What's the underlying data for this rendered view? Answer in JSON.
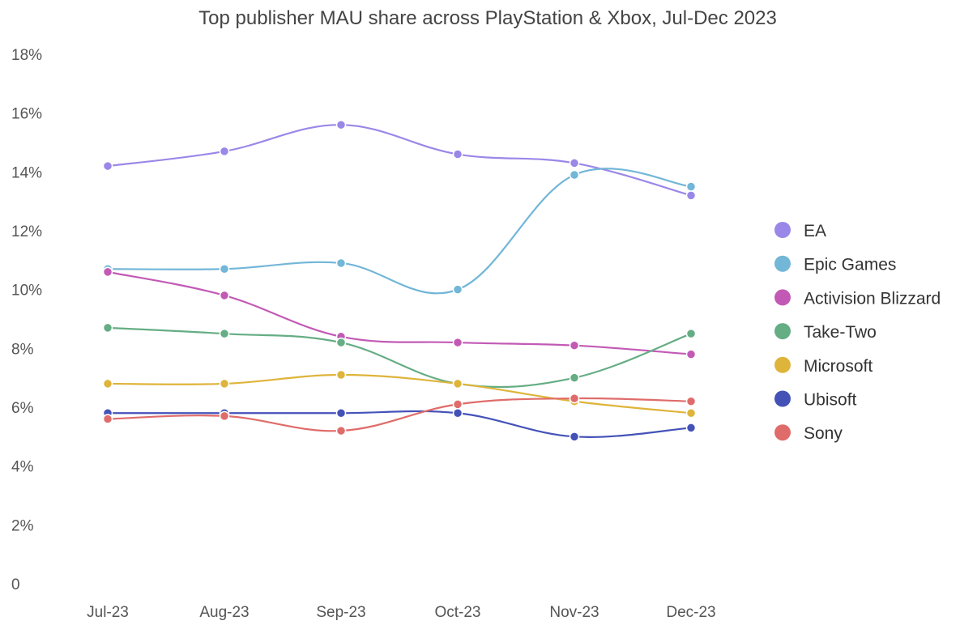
{
  "chart_data": {
    "type": "line",
    "title": "Top publisher MAU share across PlayStation & Xbox, Jul-Dec 2023",
    "xlabel": "",
    "ylabel": "",
    "categories": [
      "Jul-23",
      "Aug-23",
      "Sep-23",
      "Oct-23",
      "Nov-23",
      "Dec-23"
    ],
    "ylim": [
      0,
      18
    ],
    "y_ticks": [
      "0",
      "2%",
      "4%",
      "6%",
      "8%",
      "10%",
      "12%",
      "14%",
      "16%",
      "18%"
    ],
    "grid": false,
    "legend_position": "right",
    "series": [
      {
        "name": "EA",
        "color": "#9b87e8",
        "values": [
          14.2,
          14.7,
          15.6,
          14.6,
          14.3,
          13.2
        ]
      },
      {
        "name": "Epic Games",
        "color": "#72b6d8",
        "values": [
          10.7,
          10.7,
          10.9,
          10.0,
          13.9,
          13.5
        ]
      },
      {
        "name": "Activision Blizzard",
        "color": "#c25ab5",
        "values": [
          10.6,
          9.8,
          8.4,
          8.2,
          8.1,
          7.8
        ]
      },
      {
        "name": "Take-Two",
        "color": "#65ad84",
        "values": [
          8.7,
          8.5,
          8.2,
          6.8,
          7.0,
          8.5
        ]
      },
      {
        "name": "Microsoft",
        "color": "#deb43a",
        "values": [
          6.8,
          6.8,
          7.1,
          6.8,
          6.2,
          5.8
        ]
      },
      {
        "name": "Ubisoft",
        "color": "#4452b8",
        "values": [
          5.8,
          5.8,
          5.8,
          5.8,
          5.0,
          5.3
        ]
      },
      {
        "name": "Sony",
        "color": "#df6c6a",
        "values": [
          5.6,
          5.7,
          5.2,
          6.1,
          6.3,
          6.2
        ]
      }
    ]
  }
}
